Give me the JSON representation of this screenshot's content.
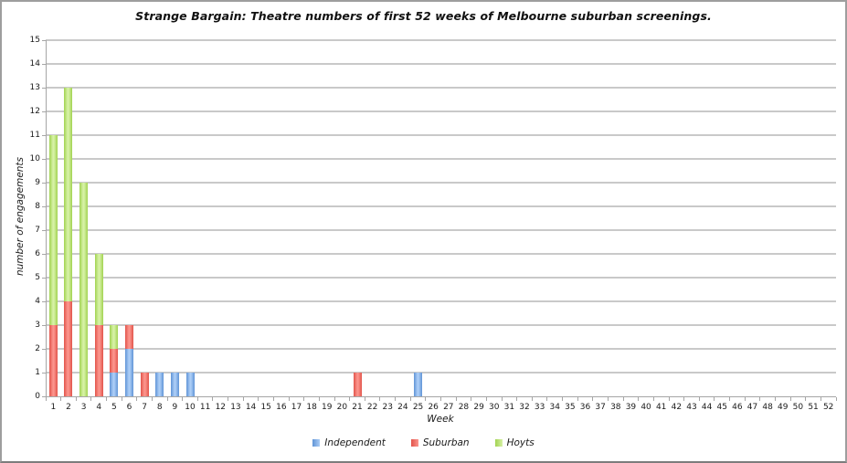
{
  "chart_data": {
    "type": "bar",
    "stacked": true,
    "title": "Strange Bargain: Theatre numbers of first 52 weeks of Melbourne suburban screenings.",
    "xlabel": "Week",
    "ylabel": "number of engagements",
    "ylim": [
      0,
      15
    ],
    "y_tick_step": 1,
    "grid": true,
    "legend_position": "bottom",
    "categories": [
      1,
      2,
      3,
      4,
      5,
      6,
      7,
      8,
      9,
      10,
      11,
      12,
      13,
      14,
      15,
      16,
      17,
      18,
      19,
      20,
      21,
      22,
      23,
      24,
      25,
      26,
      27,
      28,
      29,
      30,
      31,
      32,
      33,
      34,
      35,
      36,
      37,
      38,
      39,
      40,
      41,
      42,
      43,
      44,
      45,
      46,
      47,
      48,
      49,
      50,
      51,
      52
    ],
    "series": [
      {
        "name": "Independent",
        "color_edge": "#6094d6",
        "color_mid": "#abcdf6",
        "values": [
          0,
          0,
          0,
          0,
          1,
          2,
          0,
          1,
          1,
          1,
          0,
          0,
          0,
          0,
          0,
          0,
          0,
          0,
          0,
          0,
          0,
          0,
          0,
          0,
          1,
          0,
          0,
          0,
          0,
          0,
          0,
          0,
          0,
          0,
          0,
          0,
          0,
          0,
          0,
          0,
          0,
          0,
          0,
          0,
          0,
          0,
          0,
          0,
          0,
          0,
          0,
          0
        ]
      },
      {
        "name": "Suburban",
        "color_edge": "#e2544b",
        "color_mid": "#fb948c",
        "values": [
          3,
          4,
          0,
          3,
          1,
          1,
          1,
          0,
          0,
          0,
          0,
          0,
          0,
          0,
          0,
          0,
          0,
          0,
          0,
          0,
          1,
          0,
          0,
          0,
          0,
          0,
          0,
          0,
          0,
          0,
          0,
          0,
          0,
          0,
          0,
          0,
          0,
          0,
          0,
          0,
          0,
          0,
          0,
          0,
          0,
          0,
          0,
          0,
          0,
          0,
          0,
          0
        ]
      },
      {
        "name": "Hoyts",
        "color_edge": "#a2d351",
        "color_mid": "#d6f1a5",
        "values": [
          8,
          9,
          9,
          3,
          1,
          0,
          0,
          0,
          0,
          0,
          0,
          0,
          0,
          0,
          0,
          0,
          0,
          0,
          0,
          0,
          0,
          0,
          0,
          0,
          0,
          0,
          0,
          0,
          0,
          0,
          0,
          0,
          0,
          0,
          0,
          0,
          0,
          0,
          0,
          0,
          0,
          0,
          0,
          0,
          0,
          0,
          0,
          0,
          0,
          0,
          0,
          0
        ]
      }
    ],
    "colors": {
      "gridline": "#c9c9c9",
      "axis": "#a6a6a6"
    }
  }
}
